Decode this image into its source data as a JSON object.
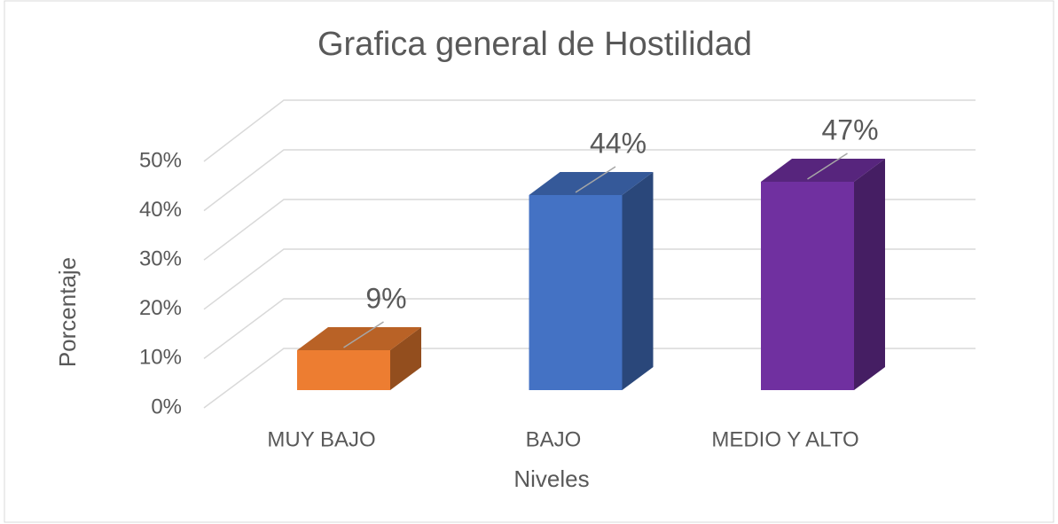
{
  "chart_data": {
    "type": "bar3d",
    "title": "Grafica general de Hostilidad",
    "x_label": "Niveles",
    "y_label": "Porcentaje",
    "categories": [
      "MUY BAJO",
      "BAJO",
      "MEDIO Y ALTO"
    ],
    "values": [
      9,
      44,
      47
    ],
    "value_labels": [
      "9%",
      "44%",
      "47%"
    ],
    "colors": [
      "#ed7d31",
      "#4472c4",
      "#7030a0"
    ],
    "ylim": [
      0,
      50
    ],
    "yticks": [
      {
        "value": 0,
        "label": "0%"
      },
      {
        "value": 10,
        "label": "10%"
      },
      {
        "value": 20,
        "label": "20%"
      },
      {
        "value": 30,
        "label": "30%"
      },
      {
        "value": 40,
        "label": "40%"
      },
      {
        "value": 50,
        "label": "50%"
      }
    ],
    "grid": true
  }
}
